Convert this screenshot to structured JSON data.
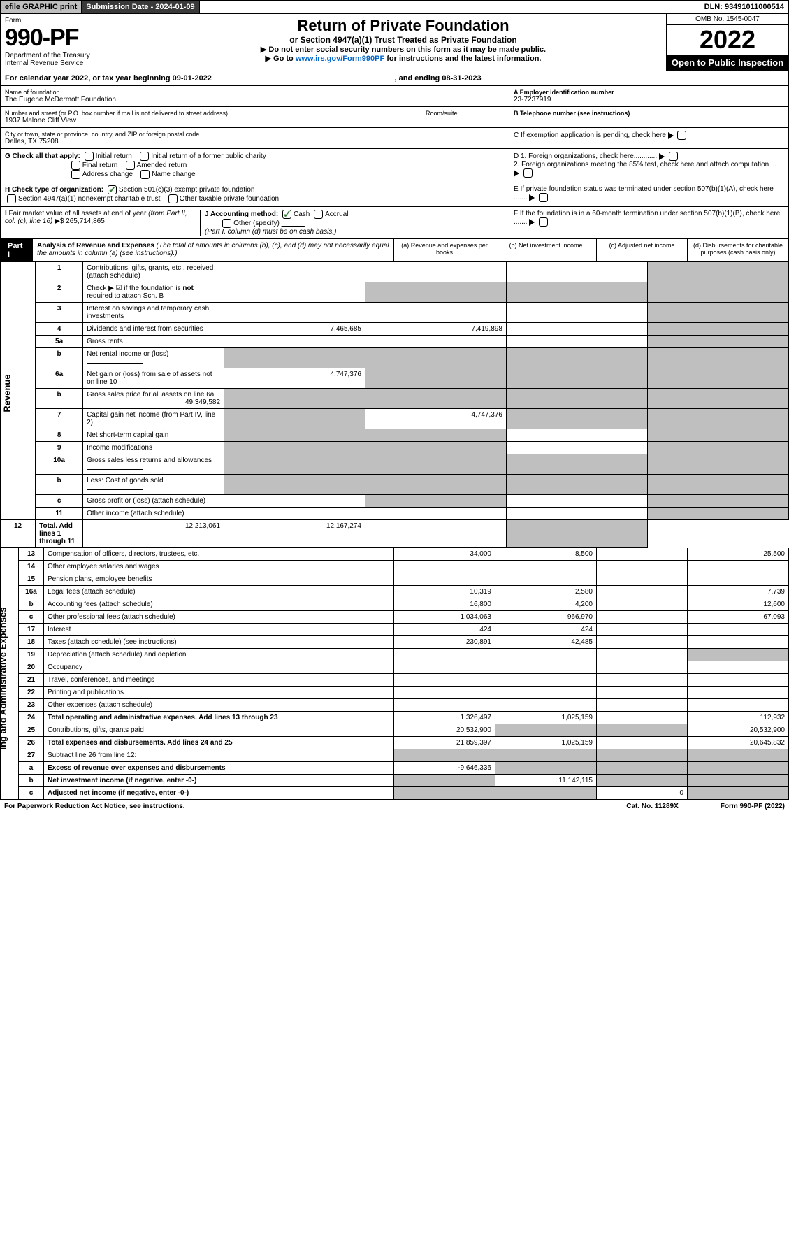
{
  "topbar": {
    "efile": "efile GRAPHIC print",
    "submission": "Submission Date - 2024-01-09",
    "dln": "DLN: 93491011000514"
  },
  "header": {
    "form_label": "Form",
    "form_num": "990-PF",
    "dept": "Department of the Treasury\nInternal Revenue Service",
    "title": "Return of Private Foundation",
    "subtitle": "or Section 4947(a)(1) Trust Treated as Private Foundation",
    "instr1": "▶ Do not enter social security numbers on this form as it may be made public.",
    "instr2_pre": "▶ Go to ",
    "instr2_link": "www.irs.gov/Form990PF",
    "instr2_post": " for instructions and the latest information.",
    "omb": "OMB No. 1545-0047",
    "year": "2022",
    "open": "Open to Public Inspection"
  },
  "calendar": {
    "pre": "For calendar year 2022, or tax year beginning ",
    "begin": "09-01-2022",
    "mid": " , and ending ",
    "end": "08-31-2023"
  },
  "foundation": {
    "name_lbl": "Name of foundation",
    "name": "The Eugene McDermott Foundation",
    "addr_lbl": "Number and street (or P.O. box number if mail is not delivered to street address)",
    "addr": "1937 Malone Cliff View",
    "room_lbl": "Room/suite",
    "room": "",
    "city_lbl": "City or town, state or province, country, and ZIP or foreign postal code",
    "city": "Dallas, TX  75208",
    "ein_lbl": "A Employer identification number",
    "ein": "23-7237919",
    "tel_lbl": "B Telephone number (see instructions)",
    "tel": "",
    "c_lbl": "C If exemption application is pending, check here"
  },
  "checkG": {
    "label": "G Check all that apply:",
    "opts": [
      "Initial return",
      "Initial return of a former public charity",
      "Final return",
      "Amended return",
      "Address change",
      "Name change"
    ]
  },
  "checkH": {
    "label": "H Check type of organization:",
    "opt1": "Section 501(c)(3) exempt private foundation",
    "opt2": "Section 4947(a)(1) nonexempt charitable trust",
    "opt3": "Other taxable private foundation"
  },
  "checkD": {
    "d1": "D 1. Foreign organizations, check here............",
    "d2": "2. Foreign organizations meeting the 85% test, check here and attach computation ...",
    "e": "E  If private foundation status was terminated under section 507(b)(1)(A), check here .......",
    "f": "F  If the foundation is in a 60-month termination under section 507(b)(1)(B), check here ......."
  },
  "checkI": {
    "label": "I Fair market value of all assets at end of year (from Part II, col. (c), line 16) ▶ $",
    "value": "265,714,865"
  },
  "checkJ": {
    "label": "J Accounting method:",
    "opts": [
      "Cash",
      "Accrual",
      "Other (specify)"
    ],
    "note": "(Part I, column (d) must be on cash basis.)"
  },
  "partI": {
    "label": "Part I",
    "title": "Analysis of Revenue and Expenses",
    "note": "(The total of amounts in columns (b), (c), and (d) may not necessarily equal the amounts in column (a) (see instructions).)",
    "cols": {
      "a": "(a) Revenue and expenses per books",
      "b": "(b) Net investment income",
      "c": "(c) Adjusted net income",
      "d": "(d) Disbursements for charitable purposes (cash basis only)"
    }
  },
  "sides": {
    "revenue": "Revenue",
    "expenses": "Operating and Administrative Expenses"
  },
  "rows": [
    {
      "n": "1",
      "d": "Contributions, gifts, grants, etc., received (attach schedule)",
      "a": "",
      "b": "",
      "c": "",
      "dd": "",
      "sd": true
    },
    {
      "n": "2",
      "d": "Check ▶ ☑ if the foundation is not required to attach Sch. B",
      "a": "",
      "b": "",
      "c": "",
      "dd": "",
      "sb": true,
      "sc": true,
      "sd": true,
      "bold_not": true
    },
    {
      "n": "3",
      "d": "Interest on savings and temporary cash investments",
      "a": "",
      "b": "",
      "c": "",
      "dd": "",
      "sd": true
    },
    {
      "n": "4",
      "d": "Dividends and interest from securities",
      "a": "7,465,685",
      "b": "7,419,898",
      "c": "",
      "dd": "",
      "sd": true
    },
    {
      "n": "5a",
      "d": "Gross rents",
      "a": "",
      "b": "",
      "c": "",
      "dd": "",
      "sd": true
    },
    {
      "n": "b",
      "d": "Net rental income or (loss)",
      "a": "",
      "b": "",
      "c": "",
      "dd": "",
      "sa": true,
      "sb": true,
      "sc": true,
      "sd": true,
      "inline": true
    },
    {
      "n": "6a",
      "d": "Net gain or (loss) from sale of assets not on line 10",
      "a": "4,747,376",
      "b": "",
      "c": "",
      "dd": "",
      "sb": true,
      "sc": true,
      "sd": true
    },
    {
      "n": "b",
      "d": "Gross sales price for all assets on line 6a",
      "inline_val": "49,349,582",
      "a": "",
      "b": "",
      "c": "",
      "dd": "",
      "sa": true,
      "sb": true,
      "sc": true,
      "sd": true
    },
    {
      "n": "7",
      "d": "Capital gain net income (from Part IV, line 2)",
      "a": "",
      "b": "4,747,376",
      "c": "",
      "dd": "",
      "sa": true,
      "sc": true,
      "sd": true
    },
    {
      "n": "8",
      "d": "Net short-term capital gain",
      "a": "",
      "b": "",
      "c": "",
      "dd": "",
      "sa": true,
      "sb": true,
      "sd": true
    },
    {
      "n": "9",
      "d": "Income modifications",
      "a": "",
      "b": "",
      "c": "",
      "dd": "",
      "sa": true,
      "sb": true,
      "sd": true
    },
    {
      "n": "10a",
      "d": "Gross sales less returns and allowances",
      "a": "",
      "b": "",
      "c": "",
      "dd": "",
      "sa": true,
      "sb": true,
      "sc": true,
      "sd": true,
      "inline": true
    },
    {
      "n": "b",
      "d": "Less: Cost of goods sold",
      "a": "",
      "b": "",
      "c": "",
      "dd": "",
      "sa": true,
      "sb": true,
      "sc": true,
      "sd": true,
      "inline": true
    },
    {
      "n": "c",
      "d": "Gross profit or (loss) (attach schedule)",
      "a": "",
      "b": "",
      "c": "",
      "dd": "",
      "sb": true,
      "sd": true
    },
    {
      "n": "11",
      "d": "Other income (attach schedule)",
      "a": "",
      "b": "",
      "c": "",
      "dd": "",
      "sd": true
    },
    {
      "n": "12",
      "d": "Total. Add lines 1 through 11",
      "a": "12,213,061",
      "b": "12,167,274",
      "c": "",
      "dd": "",
      "sd": true,
      "bold": true
    }
  ],
  "rows2": [
    {
      "n": "13",
      "d": "Compensation of officers, directors, trustees, etc.",
      "a": "34,000",
      "b": "8,500",
      "c": "",
      "dd": "25,500"
    },
    {
      "n": "14",
      "d": "Other employee salaries and wages",
      "a": "",
      "b": "",
      "c": "",
      "dd": ""
    },
    {
      "n": "15",
      "d": "Pension plans, employee benefits",
      "a": "",
      "b": "",
      "c": "",
      "dd": ""
    },
    {
      "n": "16a",
      "d": "Legal fees (attach schedule)",
      "a": "10,319",
      "b": "2,580",
      "c": "",
      "dd": "7,739"
    },
    {
      "n": "b",
      "d": "Accounting fees (attach schedule)",
      "a": "16,800",
      "b": "4,200",
      "c": "",
      "dd": "12,600"
    },
    {
      "n": "c",
      "d": "Other professional fees (attach schedule)",
      "a": "1,034,063",
      "b": "966,970",
      "c": "",
      "dd": "67,093"
    },
    {
      "n": "17",
      "d": "Interest",
      "a": "424",
      "b": "424",
      "c": "",
      "dd": ""
    },
    {
      "n": "18",
      "d": "Taxes (attach schedule) (see instructions)",
      "a": "230,891",
      "b": "42,485",
      "c": "",
      "dd": ""
    },
    {
      "n": "19",
      "d": "Depreciation (attach schedule) and depletion",
      "a": "",
      "b": "",
      "c": "",
      "dd": "",
      "sd": true
    },
    {
      "n": "20",
      "d": "Occupancy",
      "a": "",
      "b": "",
      "c": "",
      "dd": ""
    },
    {
      "n": "21",
      "d": "Travel, conferences, and meetings",
      "a": "",
      "b": "",
      "c": "",
      "dd": ""
    },
    {
      "n": "22",
      "d": "Printing and publications",
      "a": "",
      "b": "",
      "c": "",
      "dd": ""
    },
    {
      "n": "23",
      "d": "Other expenses (attach schedule)",
      "a": "",
      "b": "",
      "c": "",
      "dd": ""
    },
    {
      "n": "24",
      "d": "Total operating and administrative expenses. Add lines 13 through 23",
      "a": "1,326,497",
      "b": "1,025,159",
      "c": "",
      "dd": "112,932",
      "bold": true
    },
    {
      "n": "25",
      "d": "Contributions, gifts, grants paid",
      "a": "20,532,900",
      "b": "",
      "c": "",
      "dd": "20,532,900",
      "sb": true,
      "sc": true
    },
    {
      "n": "26",
      "d": "Total expenses and disbursements. Add lines 24 and 25",
      "a": "21,859,397",
      "b": "1,025,159",
      "c": "",
      "dd": "20,645,832",
      "bold": true
    }
  ],
  "rows3": [
    {
      "n": "27",
      "d": "Subtract line 26 from line 12:",
      "a": "",
      "b": "",
      "c": "",
      "dd": "",
      "sa": true,
      "sb": true,
      "sc": true,
      "sd": true
    },
    {
      "n": "a",
      "d": "Excess of revenue over expenses and disbursements",
      "a": "-9,646,336",
      "b": "",
      "c": "",
      "dd": "",
      "bold": true,
      "sb": true,
      "sc": true,
      "sd": true
    },
    {
      "n": "b",
      "d": "Net investment income (if negative, enter -0-)",
      "a": "",
      "b": "11,142,115",
      "c": "",
      "dd": "",
      "bold": true,
      "sa": true,
      "sc": true,
      "sd": true
    },
    {
      "n": "c",
      "d": "Adjusted net income (if negative, enter -0-)",
      "a": "",
      "b": "",
      "c": "0",
      "dd": "",
      "bold": true,
      "sa": true,
      "sb": true,
      "sd": true
    }
  ],
  "footer": {
    "paperwork": "For Paperwork Reduction Act Notice, see instructions.",
    "cat": "Cat. No. 11289X",
    "form": "Form 990-PF (2022)"
  }
}
